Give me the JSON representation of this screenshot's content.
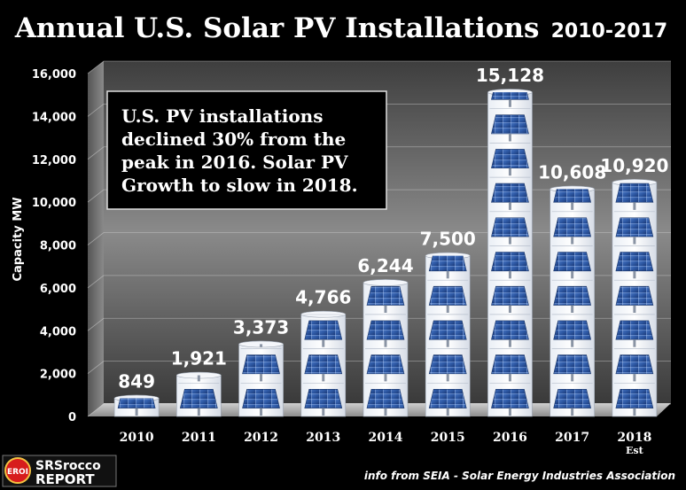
{
  "title": "Annual U.S. Solar PV Installations",
  "title_years": "2010-2017",
  "note_lines": [
    "U.S. PV installations",
    "declined 30% from the",
    "peak in 2016.  Solar PV",
    "Growth to slow in 2018."
  ],
  "source": "info from SEIA - Solar Energy Industries Association",
  "logo": {
    "badge": "EROI",
    "line1": "SRSrocco",
    "line2": "REPORT"
  },
  "colors": {
    "background": "#000000",
    "panel": "#2f5aa6",
    "accent_red": "#d71c1c"
  },
  "chart_data": {
    "type": "bar",
    "categories": [
      "2010",
      "2011",
      "2012",
      "2013",
      "2014",
      "2015",
      "2016",
      "2017",
      "2018"
    ],
    "category_sublabels": [
      "",
      "",
      "",
      "",
      "",
      "",
      "",
      "",
      "Est"
    ],
    "values": [
      849,
      1921,
      3373,
      4766,
      6244,
      7500,
      15128,
      10608,
      10920
    ],
    "data_labels": [
      "849",
      "1,921",
      "3,373",
      "4,766",
      "6,244",
      "7,500",
      "15,128",
      "10,608",
      "10,920"
    ],
    "ylabel": "Capacity MW",
    "xlabel": "",
    "ylim": [
      0,
      16000
    ],
    "yticks": [
      0,
      2000,
      4000,
      6000,
      8000,
      10000,
      12000,
      14000,
      16000
    ],
    "ytick_labels": [
      "0",
      "2,000",
      "4,000",
      "6,000",
      "8,000",
      "10,000",
      "12,000",
      "14,000",
      "16,000"
    ],
    "grid": true,
    "legend": "none"
  }
}
